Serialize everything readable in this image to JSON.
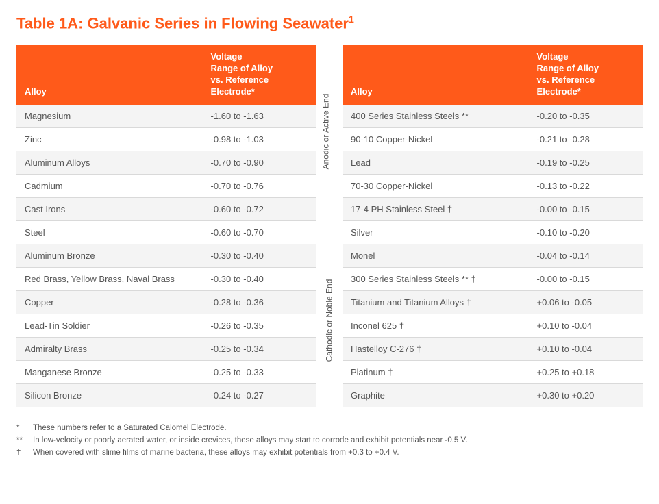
{
  "title": {
    "prefix": "Table 1A: Galvanic Series in Flowing Seawater",
    "sup": "1"
  },
  "headers": {
    "alloy": "Alloy",
    "voltage_line1": "Voltage",
    "voltage_line2": "Range of Alloy",
    "voltage_line3": "vs. Reference",
    "voltage_line4": "Electrode*"
  },
  "leftRows": [
    {
      "alloy": "Magnesium",
      "voltage": "-1.60 to -1.63"
    },
    {
      "alloy": "Zinc",
      "voltage": "-0.98 to -1.03"
    },
    {
      "alloy": "Aluminum Alloys",
      "voltage": "-0.70 to -0.90"
    },
    {
      "alloy": "Cadmium",
      "voltage": "-0.70 to -0.76"
    },
    {
      "alloy": "Cast Irons",
      "voltage": "-0.60 to -0.72"
    },
    {
      "alloy": "Steel",
      "voltage": "-0.60 to -0.70"
    },
    {
      "alloy": "Aluminum Bronze",
      "voltage": "-0.30 to -0.40"
    },
    {
      "alloy": "Red Brass, Yellow Brass, Naval Brass",
      "voltage": "-0.30 to -0.40"
    },
    {
      "alloy": "Copper",
      "voltage": "-0.28 to -0.36"
    },
    {
      "alloy": "Lead-Tin Soldier",
      "voltage": "-0.26 to -0.35"
    },
    {
      "alloy": "Admiralty Brass",
      "voltage": "-0.25 to -0.34"
    },
    {
      "alloy": "Manganese Bronze",
      "voltage": "-0.25 to -0.33"
    },
    {
      "alloy": "Silicon Bronze",
      "voltage": "-0.24 to -0.27"
    }
  ],
  "rightRows": [
    {
      "alloy": "400 Series Stainless Steels **",
      "voltage": "-0.20 to -0.35"
    },
    {
      "alloy": "90-10 Copper-Nickel",
      "voltage": "-0.21 to -0.28"
    },
    {
      "alloy": "Lead",
      "voltage": "-0.19 to -0.25"
    },
    {
      "alloy": "70-30 Copper-Nickel",
      "voltage": "-0.13 to -0.22"
    },
    {
      "alloy": "17-4 PH Stainless Steel †",
      "voltage": "-0.00 to -0.15"
    },
    {
      "alloy": "Silver",
      "voltage": "-0.10 to -0.20"
    },
    {
      "alloy": "Monel",
      "voltage": "-0.04 to -0.14"
    },
    {
      "alloy": "300 Series Stainless Steels ** †",
      "voltage": "-0.00 to -0.15"
    },
    {
      "alloy": "Titanium and Titanium Alloys †",
      "voltage": "+0.06 to -0.05"
    },
    {
      "alloy": "Inconel 625 †",
      "voltage": "+0.10 to -0.04"
    },
    {
      "alloy": "Hastelloy C-276 †",
      "voltage": "+0.10 to -0.04"
    },
    {
      "alloy": "Platinum †",
      "voltage": "+0.25 to +0.18"
    },
    {
      "alloy": "Graphite",
      "voltage": "+0.30 to +0.20"
    }
  ],
  "sideLabels": {
    "anodic": "Anodic or Active End",
    "cathodic": "Cathodic or Noble End"
  },
  "footnotes": [
    {
      "sym": "*",
      "text": "These numbers refer to a Saturated Calomel Electrode."
    },
    {
      "sym": "**",
      "text": "In low-velocity or poorly aerated water, or inside crevices, these alloys may start to corrode and exhibit potentials near -0.5 V."
    },
    {
      "sym": "†",
      "text": "When covered with slime films of marine bacteria, these alloys may exhibit potentials from +0.3 to +0.4 V."
    }
  ],
  "style": {
    "accent": "#ff5a1a",
    "rowAlt": "#f4f4f4",
    "border": "#d9d9d9",
    "text": "#555555"
  }
}
